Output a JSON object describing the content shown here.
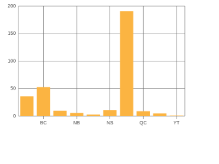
{
  "chart_data": {
    "type": "bar",
    "categories": [
      null,
      "BC",
      null,
      "NB",
      null,
      "NS",
      null,
      "QC",
      null,
      "YT"
    ],
    "values": [
      36,
      53,
      10,
      6,
      3,
      11,
      191,
      9,
      5,
      1
    ],
    "color": "#fbb442",
    "ylim": [
      0,
      200
    ],
    "yticks": [
      0,
      50,
      100,
      150,
      200
    ],
    "grid": true
  }
}
